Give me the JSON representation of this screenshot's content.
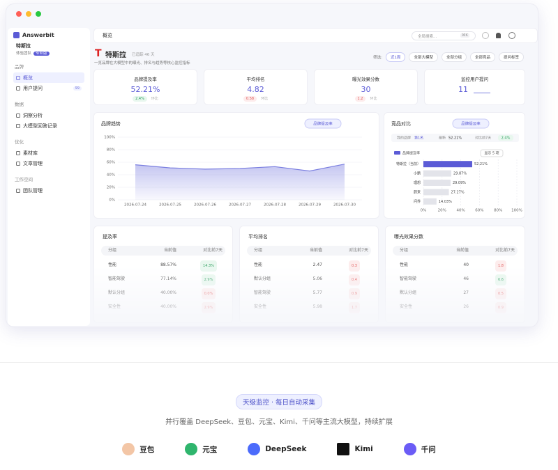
{
  "sidebar": {
    "brand": "Answerbit",
    "org": "特斯拉",
    "team": "体验团队",
    "plan": "专业版",
    "sections": [
      {
        "title": "品牌",
        "items": [
          {
            "label": "概览"
          },
          {
            "label": "用户提问",
            "badge": "99"
          }
        ]
      },
      {
        "title": "数据",
        "items": [
          {
            "label": "洞察分析"
          },
          {
            "label": "大模型回答记录"
          }
        ]
      },
      {
        "title": "优化",
        "items": [
          {
            "label": "素材库"
          },
          {
            "label": "文章管理"
          }
        ]
      },
      {
        "title": "工作空间",
        "items": [
          {
            "label": "团队管理"
          }
        ]
      }
    ]
  },
  "topbar": {
    "title": "概览",
    "search": "全局搜索...",
    "shortcut": "⌘K"
  },
  "header": {
    "brand": "特斯拉",
    "sub": "已追踪 46 天",
    "desc": "一览品牌在大模型中的曝光、排名与趋势等核心监控指标",
    "filter_label": "筛选:",
    "filters": [
      "近1周",
      "全部大模型",
      "全部分组",
      "全部竞品",
      "提问标签"
    ]
  },
  "kpis": [
    {
      "label": "品牌提及率",
      "value": "52.21%",
      "delta": "2.4%",
      "dir": "up",
      "note": "环比"
    },
    {
      "label": "平均排名",
      "value": "4.82",
      "delta": "0.58",
      "dir": "down",
      "note": "环比"
    },
    {
      "label": "曝光效果分数",
      "value": "30",
      "delta": "1.2",
      "dir": "down",
      "note": "环比"
    },
    {
      "label": "监控用户提问",
      "value": "11"
    }
  ],
  "trend": {
    "type": "line",
    "title": "品牌趋势",
    "button": "品牌提及率",
    "color": "#7b7fe0",
    "x": [
      "2026-07-24",
      "2026-07-25",
      "2026-07-26",
      "2026-07-27",
      "2026-07-28",
      "2026-07-29",
      "2026-07-30"
    ],
    "values": [
      56,
      51,
      49,
      50,
      53,
      46,
      57
    ],
    "ylim": [
      0,
      100
    ],
    "yticks": [
      {
        "value": 0,
        "label": "0%"
      },
      {
        "value": 20,
        "label": "20%"
      },
      {
        "value": 40,
        "label": "40%"
      },
      {
        "value": 60,
        "label": "60%"
      },
      {
        "value": 80,
        "label": "80%"
      },
      {
        "value": 100,
        "label": "100%"
      }
    ],
    "grid": true
  },
  "compare": {
    "type": "bar",
    "title": "竞品对比",
    "button": "品牌提及率",
    "my_label": "我的品牌",
    "my_rank": "第1名",
    "latest_label": "最新",
    "latest": "52.21%",
    "delta_label": "对比前7天",
    "delta": "2.4%",
    "legend": "品牌提及率",
    "show": "显示 5 项",
    "highlight_color": "#5b5bd6",
    "color": "#e3e4ea",
    "categories": [
      "特斯拉（当前）",
      "小鹏",
      "理想",
      "蔚来",
      "问界"
    ],
    "values": [
      52.21,
      29.87,
      29.09,
      27.27,
      14.03
    ],
    "value_labels": [
      "52.21%",
      "29.87%",
      "29.09%",
      "27.27%",
      "14.03%"
    ],
    "xlim": [
      0,
      100
    ],
    "xticks": [
      {
        "value": 0,
        "label": "0%"
      },
      {
        "value": 20,
        "label": "20%"
      },
      {
        "value": 40,
        "label": "40%"
      },
      {
        "value": 60,
        "label": "60%"
      },
      {
        "value": 80,
        "label": "80%"
      },
      {
        "value": 100,
        "label": "100%"
      }
    ]
  },
  "tables": [
    {
      "title": "提及率",
      "headers": [
        "分组",
        "当前值",
        "对比前7天"
      ],
      "rows": [
        [
          "性能",
          "88.57%",
          {
            "text": "14.3%",
            "dir": "up"
          }
        ],
        [
          "智能驾驶",
          "77.14%",
          {
            "text": "2.9%",
            "dir": "up"
          }
        ],
        [
          "默认分组",
          "40.00%",
          {
            "text": "0.0%",
            "dir": "down"
          }
        ],
        [
          "安全性",
          "40.00%",
          {
            "text": "2.9%",
            "dir": "down"
          }
        ]
      ]
    },
    {
      "title": "平均排名",
      "headers": [
        "分组",
        "当前值",
        "对比前7天"
      ],
      "rows": [
        [
          "性能",
          "2.47",
          {
            "text": "0.3",
            "dir": "down"
          }
        ],
        [
          "默认分组",
          "5.06",
          {
            "text": "0.4",
            "dir": "down"
          }
        ],
        [
          "智能驾驶",
          "5.77",
          {
            "text": "0.9",
            "dir": "down"
          }
        ],
        [
          "安全性",
          "5.98",
          {
            "text": "1.7",
            "dir": "down"
          }
        ]
      ]
    },
    {
      "title": "曝光效果分数",
      "headers": [
        "分组",
        "当前值",
        "对比前7天"
      ],
      "rows": [
        [
          "性能",
          "40",
          {
            "text": "1.8",
            "dir": "down"
          }
        ],
        [
          "智能驾驶",
          "46",
          {
            "text": "6.6",
            "dir": "up"
          }
        ],
        [
          "默认分组",
          "27",
          {
            "text": "0.5",
            "dir": "down"
          }
        ],
        [
          "安全性",
          "26",
          {
            "text": "0.9",
            "dir": "down"
          }
        ]
      ]
    }
  ],
  "footer": {
    "badge": "天级监控 · 每日自动采集",
    "text": "并行覆盖 DeepSeek、豆包、元宝、Kimi、千问等主流大模型，持续扩展",
    "models": [
      "豆包",
      "元宝",
      "DeepSeek",
      "Kimi",
      "千问"
    ]
  }
}
